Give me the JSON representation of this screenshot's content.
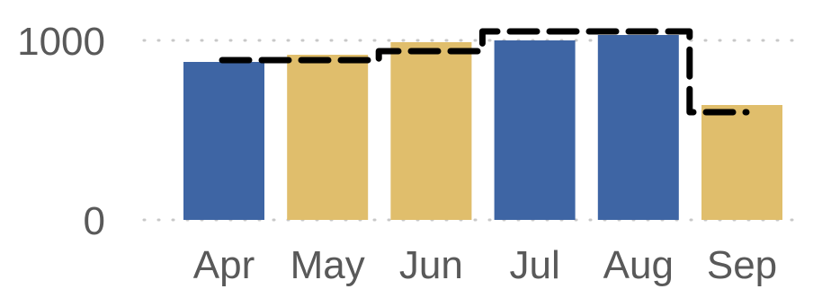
{
  "chart_data": {
    "type": "bar",
    "categories": [
      "Apr",
      "May",
      "Jun",
      "Jul",
      "Aug",
      "Sep"
    ],
    "values": [
      880,
      920,
      990,
      1000,
      1030,
      640
    ],
    "bar_colors": [
      "#3e65a4",
      "#e0be6c",
      "#e0be6c",
      "#3e65a4",
      "#3e65a4",
      "#e0be6c"
    ],
    "step_series": {
      "values": [
        890,
        890,
        940,
        1050,
        1050,
        600
      ],
      "color": "#000000",
      "style": "dashed-step"
    },
    "yticks": [
      0,
      1000
    ],
    "ylim": [
      0,
      1060
    ],
    "grid": true,
    "title": "",
    "xlabel": "",
    "ylabel": ""
  }
}
